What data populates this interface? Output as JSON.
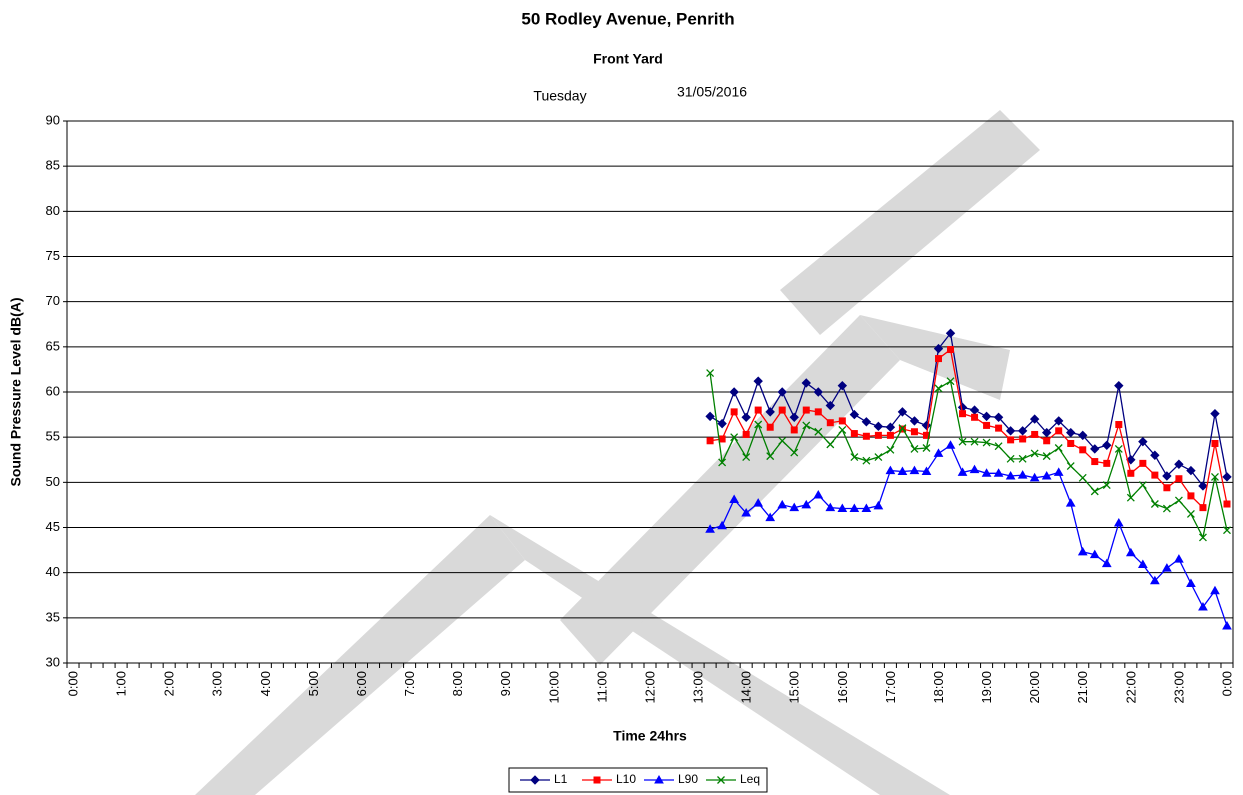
{
  "chart_data": {
    "type": "line",
    "title": "50 Rodley Avenue, Penrith",
    "subtitle": "Front Yard",
    "day": "Tuesday",
    "date": "31/05/2016",
    "x_label": "Time 24hrs",
    "y_label": "Sound Pressure Level dB(A)",
    "categories": [
      "0:00",
      null,
      null,
      null,
      "1:00",
      null,
      null,
      null,
      "2:00",
      null,
      null,
      null,
      "3:00",
      null,
      null,
      null,
      "4:00",
      null,
      null,
      null,
      "5:00",
      null,
      null,
      null,
      "6:00",
      null,
      null,
      null,
      "7:00",
      null,
      null,
      null,
      "8:00",
      null,
      null,
      null,
      "9:00",
      null,
      null,
      null,
      "10:00",
      null,
      null,
      null,
      "11:00",
      null,
      null,
      null,
      "12:00",
      null,
      null,
      null,
      "13:00",
      null,
      null,
      null,
      "14:00",
      null,
      null,
      null,
      "15:00",
      null,
      null,
      null,
      "16:00",
      null,
      null,
      null,
      "17:00",
      null,
      null,
      null,
      "18:00",
      null,
      null,
      null,
      "19:00",
      null,
      null,
      null,
      "20:00",
      null,
      null,
      null,
      "21:00",
      null,
      null,
      null,
      "22:00",
      null,
      null,
      null,
      "23:00",
      null,
      null,
      null,
      "0:00"
    ],
    "series": [
      {
        "name": "L1",
        "color": "#000080",
        "marker": "diamond",
        "values": [
          null,
          null,
          null,
          null,
          null,
          null,
          null,
          null,
          null,
          null,
          null,
          null,
          null,
          null,
          null,
          null,
          null,
          null,
          null,
          null,
          null,
          null,
          null,
          null,
          null,
          null,
          null,
          null,
          null,
          null,
          null,
          null,
          null,
          null,
          null,
          null,
          null,
          null,
          null,
          null,
          null,
          null,
          null,
          null,
          null,
          null,
          null,
          null,
          null,
          null,
          null,
          null,
          null,
          57.3,
          56.5,
          60,
          57.2,
          61.2,
          57.8,
          60,
          57.2,
          61,
          60,
          58.5,
          60.7,
          57.5,
          56.7,
          56.2,
          56.1,
          57.8,
          56.8,
          56.3,
          64.8,
          66.5,
          58.3,
          58,
          57.3,
          57.2,
          55.7,
          55.7,
          57,
          55.5,
          56.8,
          55.5,
          55.2,
          53.7,
          54.1,
          60.7,
          52.5,
          54.5,
          53,
          50.7,
          52,
          51.3,
          49.6,
          57.6,
          50.6
        ]
      },
      {
        "name": "L10",
        "color": "#ff0000",
        "marker": "square",
        "values": [
          null,
          null,
          null,
          null,
          null,
          null,
          null,
          null,
          null,
          null,
          null,
          null,
          null,
          null,
          null,
          null,
          null,
          null,
          null,
          null,
          null,
          null,
          null,
          null,
          null,
          null,
          null,
          null,
          null,
          null,
          null,
          null,
          null,
          null,
          null,
          null,
          null,
          null,
          null,
          null,
          null,
          null,
          null,
          null,
          null,
          null,
          null,
          null,
          null,
          null,
          null,
          null,
          null,
          54.6,
          54.8,
          57.8,
          55.3,
          58,
          56.1,
          58,
          55.8,
          58,
          57.8,
          56.6,
          56.8,
          55.4,
          55.1,
          55.2,
          55.2,
          55.9,
          55.6,
          55.2,
          63.7,
          64.7,
          57.6,
          57.2,
          56.3,
          56,
          54.7,
          54.8,
          55.3,
          54.6,
          55.7,
          54.3,
          53.6,
          52.3,
          52.1,
          56.4,
          51,
          52.1,
          50.8,
          49.4,
          50.4,
          48.5,
          47.2,
          54.3,
          47.6
        ]
      },
      {
        "name": "L90",
        "color": "#0000ff",
        "marker": "triangle",
        "values": [
          null,
          null,
          null,
          null,
          null,
          null,
          null,
          null,
          null,
          null,
          null,
          null,
          null,
          null,
          null,
          null,
          null,
          null,
          null,
          null,
          null,
          null,
          null,
          null,
          null,
          null,
          null,
          null,
          null,
          null,
          null,
          null,
          null,
          null,
          null,
          null,
          null,
          null,
          null,
          null,
          null,
          null,
          null,
          null,
          null,
          null,
          null,
          null,
          null,
          null,
          null,
          null,
          null,
          44.8,
          45.2,
          48.1,
          46.6,
          47.7,
          46.1,
          47.5,
          47.2,
          47.5,
          48.6,
          47.2,
          47.1,
          47.1,
          47.1,
          47.4,
          51.3,
          51.2,
          51.3,
          51.2,
          53.2,
          54.1,
          51.1,
          51.4,
          51,
          51,
          50.7,
          50.8,
          50.5,
          50.7,
          51.1,
          47.7,
          42.3,
          42,
          41,
          45.5,
          42.2,
          40.9,
          39.1,
          40.5,
          41.5,
          38.8,
          36.2,
          38,
          34.1
        ]
      },
      {
        "name": "Leq",
        "color": "#008000",
        "marker": "x",
        "values": [
          null,
          null,
          null,
          null,
          null,
          null,
          null,
          null,
          null,
          null,
          null,
          null,
          null,
          null,
          null,
          null,
          null,
          null,
          null,
          null,
          null,
          null,
          null,
          null,
          null,
          null,
          null,
          null,
          null,
          null,
          null,
          null,
          null,
          null,
          null,
          null,
          null,
          null,
          null,
          null,
          null,
          null,
          null,
          null,
          null,
          null,
          null,
          null,
          null,
          null,
          null,
          null,
          null,
          62.1,
          52.2,
          55,
          52.8,
          56.4,
          52.9,
          54.6,
          53.3,
          56.3,
          55.6,
          54.2,
          55.8,
          52.8,
          52.4,
          52.8,
          53.6,
          56,
          53.7,
          53.8,
          60.4,
          61.2,
          54.5,
          54.5,
          54.4,
          54,
          52.6,
          52.6,
          53.2,
          52.9,
          53.8,
          51.8,
          50.5,
          49,
          49.7,
          53.7,
          48.3,
          49.7,
          47.6,
          47.1,
          48,
          46.5,
          43.9,
          50.6,
          44.7
        ]
      }
    ],
    "ylim": [
      30,
      90
    ],
    "yticks": [
      30,
      35,
      40,
      45,
      50,
      55,
      60,
      65,
      70,
      75,
      80,
      85,
      90
    ],
    "grid": true,
    "legend": "bottom"
  }
}
